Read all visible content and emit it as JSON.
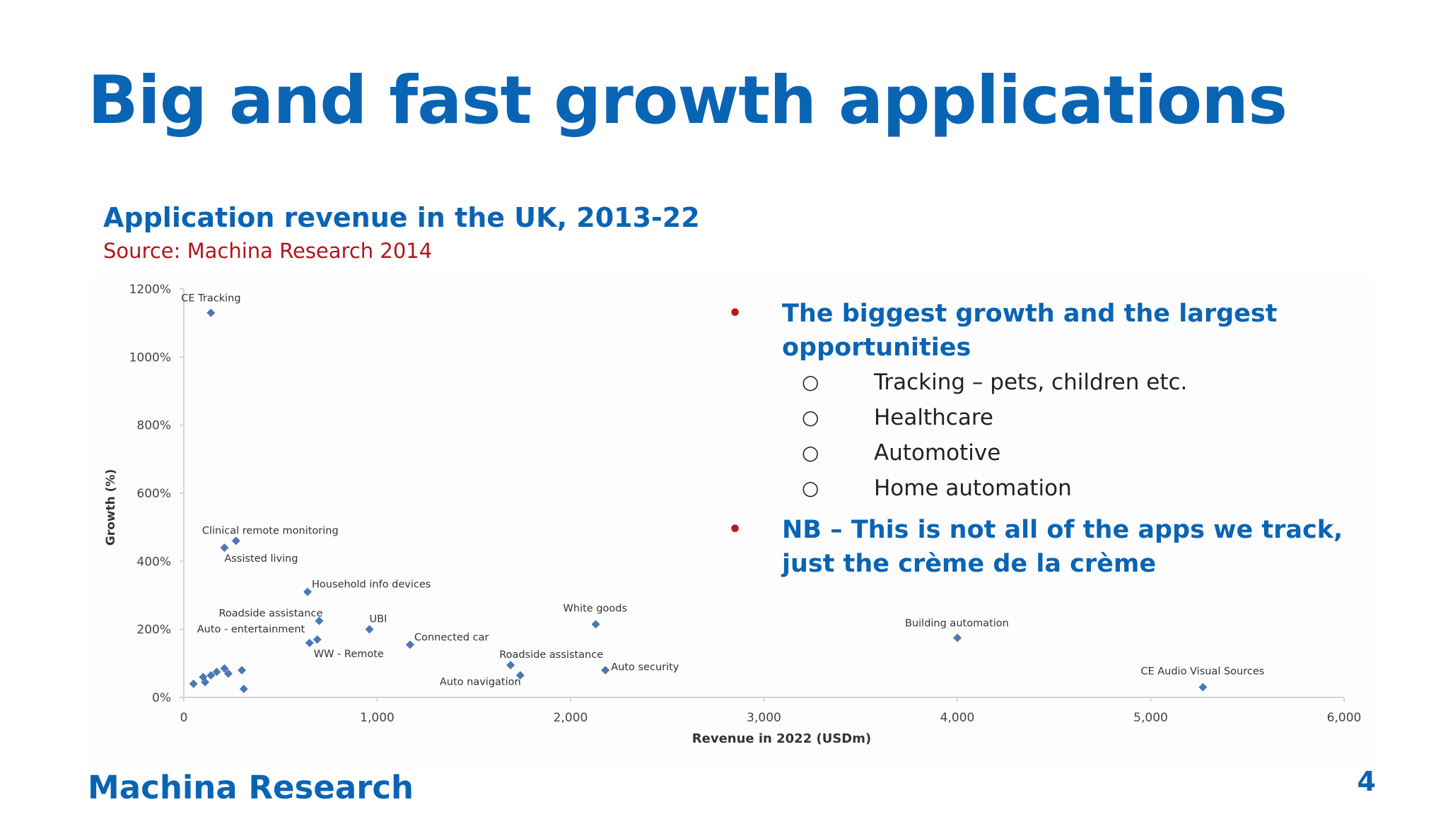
{
  "slide": {
    "title": "Big and fast growth applications",
    "subtitle": "Application revenue in the UK, 2013-22",
    "source": "Source: Machina Research 2014",
    "footer": "Machina Research",
    "page_number": "4"
  },
  "bullets": [
    {
      "text": "The biggest growth and the largest opportunities",
      "subitems": [
        "Tracking – pets, children etc.",
        "Healthcare",
        "Automotive",
        "Home automation"
      ]
    },
    {
      "text": "NB – This is not all of the apps we track, just the crème de la crème",
      "subitems": []
    }
  ],
  "chart_data": {
    "type": "scatter",
    "xlabel": "Revenue in 2022 (USDm)",
    "ylabel": "Growth (%)",
    "xlim": [
      0,
      6000
    ],
    "ylim": [
      0,
      1200
    ],
    "xticks": [
      0,
      1000,
      2000,
      3000,
      4000,
      5000,
      6000
    ],
    "xtick_labels": [
      "0",
      "1,000",
      "2,000",
      "3,000",
      "4,000",
      "5,000",
      "6,000"
    ],
    "yticks": [
      0,
      200,
      400,
      600,
      800,
      1000,
      1200
    ],
    "ytick_labels": [
      "0%",
      "200%",
      "400%",
      "600%",
      "800%",
      "1000%",
      "1200%"
    ],
    "grid": false,
    "marker_color": "#4a78b4",
    "labeled_points": [
      {
        "label": "CE Tracking",
        "x": 140,
        "y": 1130
      },
      {
        "label": "Clinical remote monitoring",
        "x": 270,
        "y": 460
      },
      {
        "label": "Assisted living",
        "x": 210,
        "y": 440
      },
      {
        "label": "Household info devices",
        "x": 640,
        "y": 310
      },
      {
        "label": "Roadside assistance",
        "x": 700,
        "y": 225
      },
      {
        "label": "UBI",
        "x": 960,
        "y": 200
      },
      {
        "label": "Auto - entertainment",
        "x": 690,
        "y": 170
      },
      {
        "label": "WW - Remote",
        "x": 650,
        "y": 160
      },
      {
        "label": "Connected car",
        "x": 1170,
        "y": 155
      },
      {
        "label": "White goods",
        "x": 2130,
        "y": 215
      },
      {
        "label": "Roadside assistance",
        "x": 1690,
        "y": 95
      },
      {
        "label": "Auto navigation",
        "x": 1740,
        "y": 65
      },
      {
        "label": "Auto security",
        "x": 2180,
        "y": 80
      },
      {
        "label": "Building automation",
        "x": 4000,
        "y": 175
      },
      {
        "label": "CE Audio Visual Sources",
        "x": 5270,
        "y": 30
      }
    ],
    "unlabeled_points": [
      {
        "x": 50,
        "y": 40
      },
      {
        "x": 100,
        "y": 60
      },
      {
        "x": 110,
        "y": 45
      },
      {
        "x": 140,
        "y": 65
      },
      {
        "x": 170,
        "y": 75
      },
      {
        "x": 210,
        "y": 85
      },
      {
        "x": 230,
        "y": 70
      },
      {
        "x": 300,
        "y": 80
      },
      {
        "x": 310,
        "y": 25
      }
    ]
  }
}
